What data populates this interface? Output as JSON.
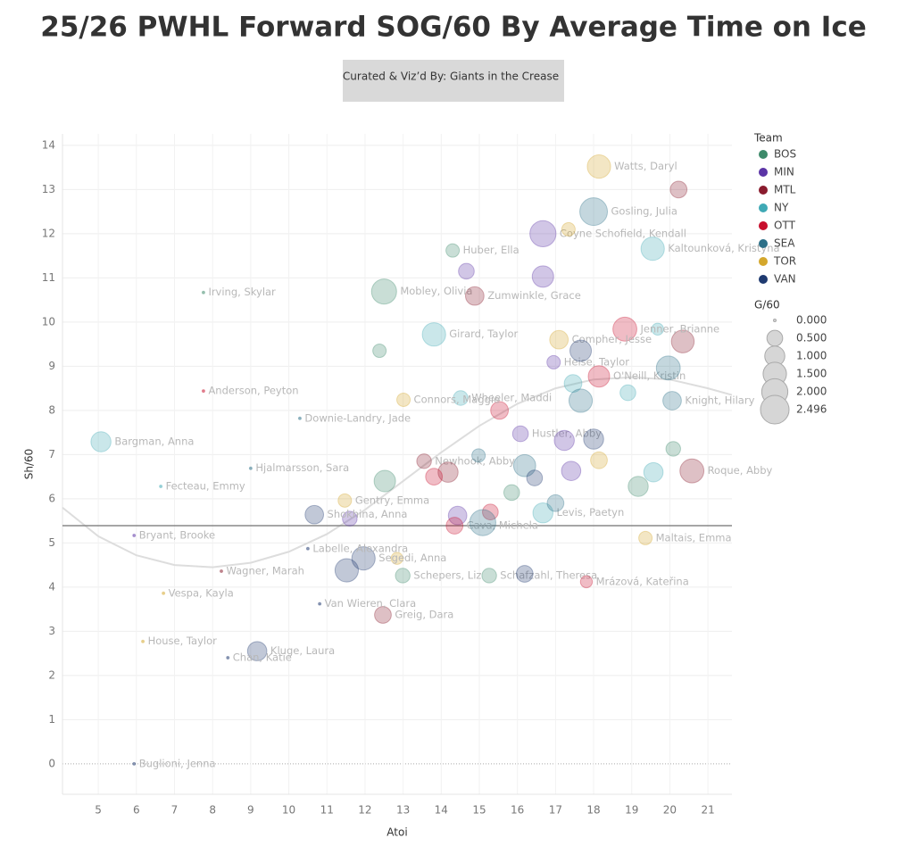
{
  "chart_data": {
    "type": "scatter",
    "title": "25/26 PWHL Forward SOG/60 By Average Time on Ice",
    "subtitle": "Curated & Viz’d By: Giants in the Crease",
    "x_label": "Atoi",
    "y_label": "Sh/60",
    "xlim": [
      4.06,
      21.63
    ],
    "xticks": [
      5,
      6,
      7,
      8,
      9,
      10,
      11,
      12,
      13,
      14,
      15,
      16,
      17,
      18,
      19,
      20,
      21
    ],
    "ylim": [
      -0.69,
      14.26
    ],
    "yticks": [
      0,
      1,
      2,
      3,
      4,
      5,
      6,
      7,
      8,
      9,
      10,
      11,
      12,
      13,
      14
    ],
    "grid": true,
    "reference_y": 5.39,
    "legend_title": "Team",
    "size_legend_title": "G/60",
    "size_ticks": [
      {
        "value": 0,
        "label": "0.000"
      },
      {
        "value": 0.5,
        "label": "0.500"
      },
      {
        "value": 1,
        "label": "1.000"
      },
      {
        "value": 1.5,
        "label": "1.500"
      },
      {
        "value": 2,
        "label": "2.000"
      },
      {
        "value": 2.496,
        "label": "2.496"
      }
    ],
    "trendline": {
      "x": [
        4.06,
        5,
        6,
        7,
        8,
        9,
        10,
        11,
        12,
        13,
        14,
        15,
        16,
        17,
        18,
        19,
        20,
        21,
        21.63
      ],
      "y": [
        5.8,
        5.15,
        4.72,
        4.5,
        4.45,
        4.55,
        4.8,
        5.2,
        5.75,
        6.4,
        7.05,
        7.65,
        8.15,
        8.5,
        8.7,
        8.75,
        8.7,
        8.5,
        8.35
      ]
    },
    "series": [
      {
        "name": "BOS",
        "color": "#3d8a6a",
        "x": [
          14.3,
          12.5,
          12.99,
          15.26,
          7.76,
          12.38,
          12.52,
          19.17,
          20.09,
          15.85
        ],
        "values": [
          11.62,
          10.69,
          4.26,
          4.26,
          10.67,
          9.35,
          6.4,
          6.28,
          7.13,
          6.14
        ],
        "sizes": [
          0.3,
          1.8,
          0.4,
          0.4,
          0,
          0.3,
          1.2,
          1.0,
          0.4,
          0.5
        ],
        "labels": [
          "Huber, Ella",
          "Mobley, Olivia",
          "Schepers, Liz",
          "Schafzahl, Theresa",
          "Irving, Skylar",
          null,
          null,
          null,
          null,
          null
        ]
      },
      {
        "name": "MIN",
        "color": "#5b34a6",
        "x": [
          16.67,
          16.95,
          16.08,
          14.66,
          16.67,
          17.23,
          17.41,
          14.43,
          11.6,
          5.94
        ],
        "values": [
          12.0,
          9.09,
          7.47,
          11.15,
          11.03,
          7.32,
          6.63,
          5.62,
          5.55,
          5.17
        ],
        "sizes": [
          2.0,
          0.3,
          0.5,
          0.5,
          1.2,
          1.0,
          0.9,
          0.8,
          0.4,
          0
        ],
        "labels": [
          "Coyne Schofield, Kendall",
          "Heise, Taylor",
          "Hustler, Abby",
          null,
          null,
          null,
          null,
          null,
          null,
          "Bryant, Brooke"
        ]
      },
      {
        "name": "MTL",
        "color": "#8a1c2e",
        "x": [
          14.88,
          13.55,
          20.58,
          12.47,
          20.23,
          20.34,
          14.18,
          8.23
        ],
        "values": [
          10.59,
          6.85,
          6.63,
          3.37,
          13.0,
          9.56,
          6.6,
          4.36
        ],
        "sizes": [
          0.8,
          0.4,
          1.6,
          0.6,
          0.6,
          1.4,
          1.0,
          0
        ],
        "labels": [
          "Zumwinkle, Grace",
          "Newhook, Abby",
          "Roque, Abby",
          "Greig, Dara",
          null,
          null,
          null,
          "Wagner, Marah"
        ]
      },
      {
        "name": "NY",
        "color": "#3fa9b5",
        "x": [
          13.81,
          14.51,
          19.55,
          5.07,
          16.67,
          17.46,
          19.57,
          18.9,
          19.68,
          6.64
        ],
        "values": [
          9.72,
          8.28,
          11.66,
          7.29,
          5.68,
          8.61,
          6.6,
          8.4,
          9.84,
          6.28
        ],
        "sizes": [
          1.5,
          0.4,
          1.5,
          1.0,
          1.0,
          0.7,
          0.9,
          0.5,
          0.2,
          0
        ],
        "labels": [
          "Girard, Taylor",
          "Wheeler, Maddi",
          "Kaltounková, Kristýna",
          "Bargman, Anna",
          "Levis, Paetyn",
          null,
          null,
          null,
          null,
          "Fecteau, Emmy"
        ]
      },
      {
        "name": "OTT",
        "color": "#c8102e",
        "x": [
          18.82,
          18.14,
          14.35,
          17.81,
          15.53,
          13.81,
          15.29,
          7.76
        ],
        "values": [
          9.84,
          8.77,
          5.39,
          4.12,
          8.0,
          6.5,
          5.7,
          8.44
        ],
        "sizes": [
          1.6,
          1.2,
          0.6,
          0.2,
          0.7,
          0.6,
          0.5,
          0
        ],
        "labels": [
          "Jenner, Brianne",
          "O'Neill, Kristin",
          "Cava, Michela",
          "Mrázová, Kateřina",
          null,
          null,
          null,
          "Anderson, Peyton"
        ]
      },
      {
        "name": "SEA",
        "color": "#2c6f87",
        "x": [
          18.0,
          20.06,
          17.66,
          15.09,
          16.19,
          19.96,
          17.0,
          14.98,
          9.0,
          10.29
        ],
        "values": [
          12.5,
          8.22,
          8.22,
          5.46,
          6.75,
          8.96,
          5.9,
          6.98,
          6.69,
          7.82
        ],
        "sizes": [
          2.3,
          0.8,
          1.5,
          2.0,
          1.3,
          1.6,
          0.6,
          0.3,
          0,
          0
        ],
        "labels": [
          "Gosling, Julia",
          "Knight, Hilary",
          null,
          null,
          null,
          null,
          null,
          null,
          "Hjalmarsson, Sara",
          "Downie-Landry, Jade"
        ]
      },
      {
        "name": "TOR",
        "color": "#d4a72c",
        "x": [
          18.14,
          17.09,
          13.01,
          11.47,
          19.36,
          17.34,
          18.14,
          12.84,
          6.17,
          6.71
        ],
        "values": [
          13.52,
          9.6,
          8.24,
          5.96,
          5.11,
          12.1,
          6.87,
          4.65,
          2.77,
          3.86
        ],
        "sizes": [
          1.5,
          0.8,
          0.3,
          0.3,
          0.3,
          0.3,
          0.6,
          0.2,
          0,
          0
        ],
        "labels": [
          "Watts, Daryl",
          "Compher, Jesse",
          "Connors, Maggie",
          "Gentry, Emma",
          "Maltais, Emma",
          null,
          null,
          null,
          "House, Taylor",
          "Vespa, Kayla"
        ]
      },
      {
        "name": "VAN",
        "color": "#1f3a70",
        "x": [
          10.67,
          11.96,
          9.17,
          17.66,
          18.0,
          11.52,
          16.19,
          16.45,
          10.5,
          10.81,
          8.4,
          5.94
        ],
        "values": [
          5.64,
          4.65,
          2.55,
          9.35,
          7.35,
          4.38,
          4.3,
          6.47,
          4.87,
          3.62,
          2.4,
          0
        ],
        "sizes": [
          0.8,
          1.5,
          0.9,
          1.2,
          1.0,
          1.5,
          0.6,
          0.5,
          0,
          0,
          0,
          0
        ],
        "labels": [
          "Shokhina, Anna",
          "Segedi, Anna",
          "Kluge, Laura",
          null,
          null,
          null,
          null,
          null,
          "Labelle, Alexandra",
          "Van Wieren, Clara",
          "Chan, Katie",
          "Buglioni, Jenna"
        ]
      }
    ]
  }
}
